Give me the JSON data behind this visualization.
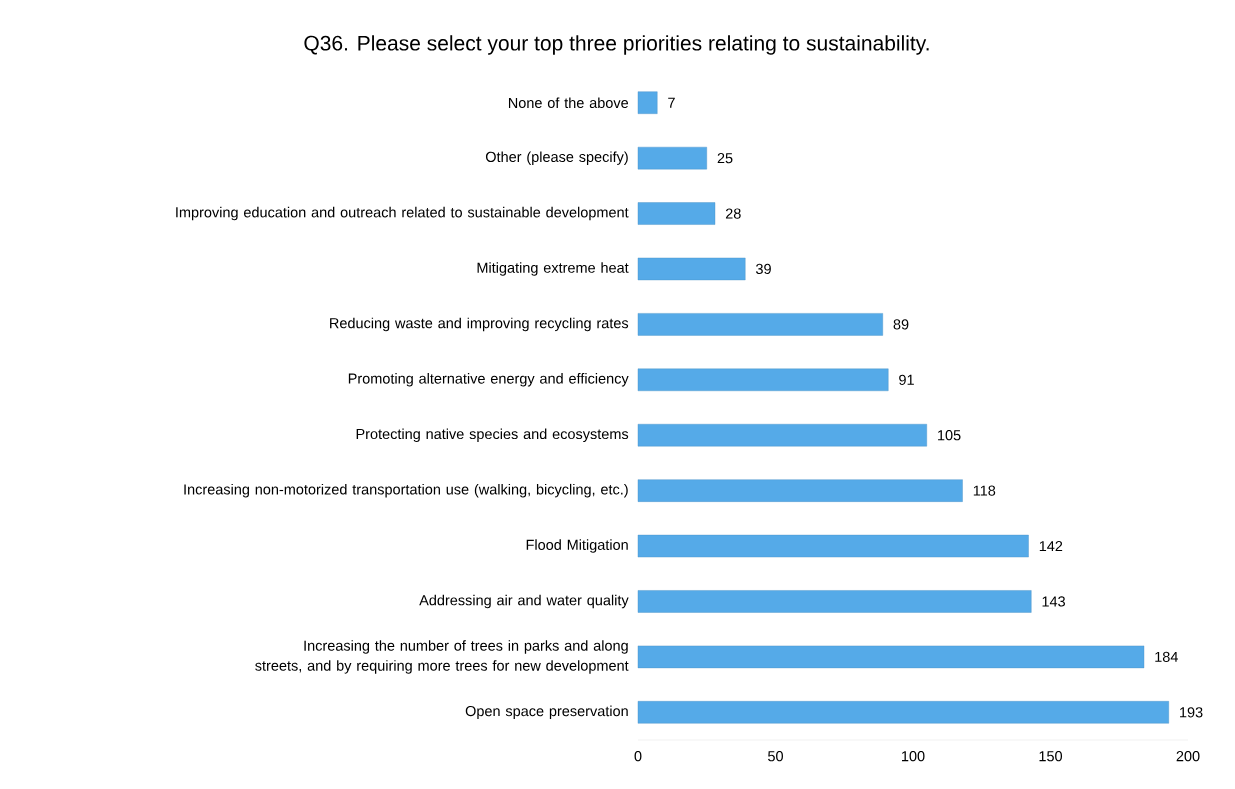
{
  "chart_data": {
    "type": "bar",
    "orientation": "horizontal",
    "title": "Q36. Please select your top three priorities relating to sustainability.",
    "categories": [
      "None of the above",
      "Other (please specify)",
      "Improving education and outreach related to sustainable development",
      "Mitigating extreme heat",
      "Reducing waste and improving recycling rates",
      "Promoting alternative energy and efficiency",
      "Protecting native species and ecosystems",
      "Increasing non-motorized transportation use (walking, bicycling, etc.)",
      "Flood Mitigation",
      "Addressing air and water quality",
      "Increasing the number of trees in parks and along streets, and by requiring more trees for new development",
      "Open space preservation"
    ],
    "values": [
      7,
      25,
      28,
      39,
      89,
      91,
      105,
      118,
      142,
      143,
      184,
      193
    ],
    "color": "#55aae8",
    "xlim": [
      0,
      200
    ],
    "xticks": [
      0,
      50,
      100,
      150,
      200
    ],
    "data_labels": true
  }
}
